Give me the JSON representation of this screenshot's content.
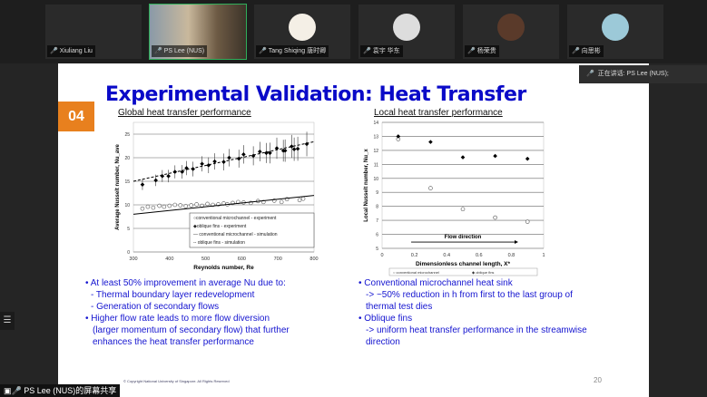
{
  "participants": [
    {
      "name": "Xiuliang Liu",
      "muted": true
    },
    {
      "name": "PS Lee (NUS)",
      "muted": false
    },
    {
      "name": "Tang Shiqing 唐时卿",
      "muted": true
    },
    {
      "name": "袁宇 华东",
      "muted": true
    },
    {
      "name": "杨荣贵",
      "muted": true
    },
    {
      "name": "向思彬",
      "muted": true
    }
  ],
  "speaking": "正在讲话: PS Lee (NUS);",
  "share_label": "PS Lee (NUS)的屏幕共享",
  "slide": {
    "number": "04",
    "title": "Experimental Validation: Heat Transfer",
    "left_subtitle": "Global heat transfer performance",
    "right_subtitle": "Local heat transfer performance",
    "left_bullets": [
      "• At least 50% improvement in average Nu due to:",
      "  - Thermal boundary layer redevelopment",
      "  - Generation of secondary flows",
      "• Higher flow rate leads to more flow diversion",
      "  (larger momentum of secondary flow) that further",
      "  enhances the heat transfer performance"
    ],
    "right_bullets": [
      "• Conventional microchannel heat sink",
      "   -> ~50% reduction in h from first to the last group of",
      "   thermal test dies",
      "• Oblique fins",
      "   -> uniform heat transfer performance in the streamwise",
      "   direction"
    ],
    "footer": "© Copyright National University of Singapore. All Rights Reserved",
    "page": "20"
  },
  "chart_data": [
    {
      "type": "scatter",
      "xlabel": "Reynolds number, Re",
      "ylabel": "Average Nusselt number, Nu_ave",
      "xlim": [
        300,
        800
      ],
      "ylim": [
        0,
        27.5
      ],
      "xticks": [
        "300",
        "400",
        "500",
        "600",
        "700",
        "800"
      ],
      "yticks": [
        "0",
        "5",
        "10",
        "15",
        "20",
        "25"
      ],
      "legend_position": "bottom-right",
      "series": [
        {
          "name": "conventional microchannel - experiment",
          "marker": "open-circle",
          "x": [
            325,
            340,
            355,
            372,
            385,
            400,
            415,
            430,
            445,
            460,
            475,
            490,
            505,
            520,
            535,
            550,
            560,
            575,
            590,
            605,
            625,
            645,
            660,
            690,
            710,
            725,
            760,
            770
          ],
          "y": [
            9.2,
            9.6,
            9.4,
            9.8,
            9.6,
            9.8,
            10,
            9.9,
            9.7,
            9.9,
            10.1,
            9.8,
            10.2,
            10,
            10.1,
            10.3,
            10.1,
            10.4,
            10.6,
            10.5,
            10.4,
            10.8,
            10.6,
            10.9,
            10.6,
            11.2,
            11,
            11.3
          ]
        },
        {
          "name": "oblique fins - experiment",
          "marker": "filled-diamond",
          "x": [
            325,
            362,
            380,
            397,
            415,
            435,
            447,
            465,
            490,
            508,
            525,
            550,
            565,
            592,
            605,
            632,
            650,
            668,
            678,
            697,
            715,
            720,
            738,
            745,
            755,
            780
          ],
          "y": [
            14.3,
            15.2,
            16.1,
            16.1,
            17,
            17,
            17.8,
            17.6,
            18.7,
            18.4,
            19.2,
            19.1,
            20,
            19.8,
            20.7,
            20.4,
            21.3,
            21,
            21,
            22,
            21.5,
            21.5,
            22.4,
            21.8,
            21.9,
            22.9
          ]
        },
        {
          "name": "conventional microchannel - simulation",
          "line": "solid",
          "x": [
            300,
            800
          ],
          "y": [
            8,
            12
          ]
        },
        {
          "name": "oblique fins - simulation",
          "line": "dashed",
          "x": [
            300,
            800
          ],
          "y": [
            15,
            23.4
          ]
        }
      ]
    },
    {
      "type": "scatter",
      "xlabel": "Dimensionless channel length, X*",
      "ylabel": "Local Nusselt number, Nu_x",
      "xlim": [
        0,
        1
      ],
      "ylim": [
        5,
        14
      ],
      "xticks": [
        "0",
        "0.2",
        "0.4",
        "0.6",
        "0.8",
        "1"
      ],
      "yticks": [
        "5",
        "6",
        "7",
        "8",
        "9",
        "10",
        "11",
        "12",
        "13",
        "14"
      ],
      "annotation": "Flow direction",
      "legend_position": "bottom",
      "series": [
        {
          "name": "conventional microchannel",
          "marker": "open-circle",
          "x": [
            0.1,
            0.3,
            0.5,
            0.7,
            0.9
          ],
          "y": [
            12.8,
            9.3,
            7.8,
            7.2,
            6.9
          ]
        },
        {
          "name": "oblique fins",
          "marker": "filled-diamond",
          "x": [
            0.1,
            0.3,
            0.5,
            0.7,
            0.9
          ],
          "y": [
            13,
            12.6,
            11.5,
            11.6,
            11.4
          ]
        }
      ]
    }
  ]
}
